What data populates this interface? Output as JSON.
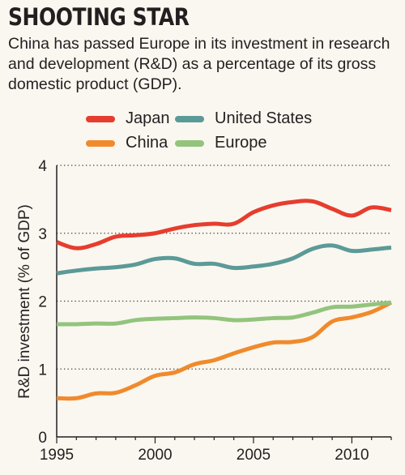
{
  "header": {
    "title": "SHOOTING STAR",
    "subtitle": "China has passed Europe in its investment in research and development (R&D) as a percentage of its gross domestic product (GDP)."
  },
  "chart_data": {
    "type": "line",
    "title": "SHOOTING STAR",
    "subtitle": "China has passed Europe in its investment in research and development (R&D) as a percentage of its gross domestic product (GDP).",
    "xlabel": "",
    "ylabel": "R&D investment (% of GDP)",
    "xlim": [
      1995,
      2012
    ],
    "ylim": [
      0,
      4
    ],
    "xticks": [
      1995,
      2000,
      2005,
      2010
    ],
    "yticks": [
      0,
      1,
      2,
      3,
      4
    ],
    "grid": "horizontal dotted",
    "legend_position": "top",
    "x": [
      1995,
      1996,
      1997,
      1998,
      1999,
      2000,
      2001,
      2002,
      2003,
      2004,
      2005,
      2006,
      2007,
      2008,
      2009,
      2010,
      2011,
      2012
    ],
    "series": [
      {
        "name": "Japan",
        "color": "#e63d2e",
        "values": [
          2.87,
          2.78,
          2.84,
          2.95,
          2.97,
          3.0,
          3.07,
          3.12,
          3.14,
          3.14,
          3.31,
          3.41,
          3.46,
          3.47,
          3.36,
          3.26,
          3.38,
          3.34
        ]
      },
      {
        "name": "United States",
        "color": "#5b9a97",
        "values": [
          2.41,
          2.45,
          2.48,
          2.5,
          2.54,
          2.62,
          2.63,
          2.55,
          2.55,
          2.49,
          2.51,
          2.55,
          2.63,
          2.77,
          2.82,
          2.74,
          2.76,
          2.79
        ]
      },
      {
        "name": "China",
        "color": "#f08a2c",
        "values": [
          0.57,
          0.57,
          0.64,
          0.65,
          0.76,
          0.9,
          0.95,
          1.07,
          1.13,
          1.23,
          1.32,
          1.39,
          1.4,
          1.47,
          1.7,
          1.76,
          1.84,
          1.98
        ]
      },
      {
        "name": "Europe",
        "color": "#93c47d",
        "values": [
          1.66,
          1.66,
          1.67,
          1.67,
          1.72,
          1.74,
          1.75,
          1.76,
          1.75,
          1.72,
          1.73,
          1.75,
          1.76,
          1.83,
          1.91,
          1.92,
          1.95,
          1.98
        ]
      }
    ]
  }
}
